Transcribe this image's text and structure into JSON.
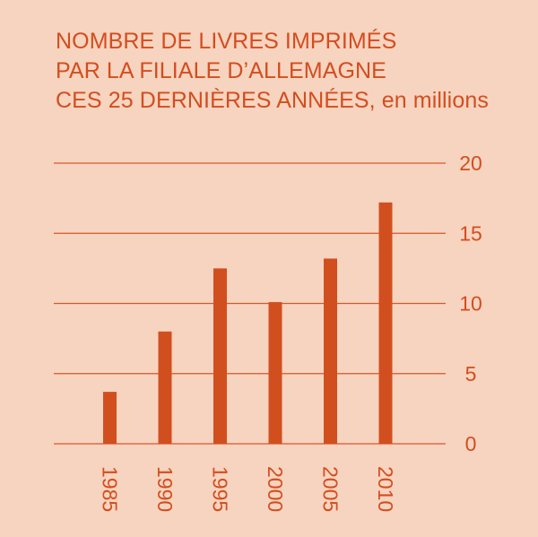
{
  "title_lines": [
    "NOMBRE DE LIVRES IMPRIMÉS",
    "PAR LA FILIALE D’ALLEMAGNE",
    "CES 25 DERNIÈRES ANNÉES,"
  ],
  "title_unit": " en millions",
  "chart_data": {
    "type": "bar",
    "title": "NOMBRE DE LIVRES IMPRIMÉS PAR LA FILIALE D’ALLEMAGNE CES 25 DERNIÈRES ANNÉES, en millions",
    "categories": [
      "1985",
      "1990",
      "1995",
      "2000",
      "2005",
      "2010"
    ],
    "values": [
      3.7,
      8.0,
      12.5,
      10.1,
      13.2,
      17.2
    ],
    "ylim": [
      0,
      20
    ],
    "yticks": [
      0,
      5,
      10,
      15,
      20
    ],
    "grid": true,
    "xlabel": "",
    "ylabel": "",
    "colors": {
      "bar": "#d14f1f",
      "grid": "#d9572a",
      "text": "#d44d1f",
      "background": "#f7d4bf"
    }
  }
}
